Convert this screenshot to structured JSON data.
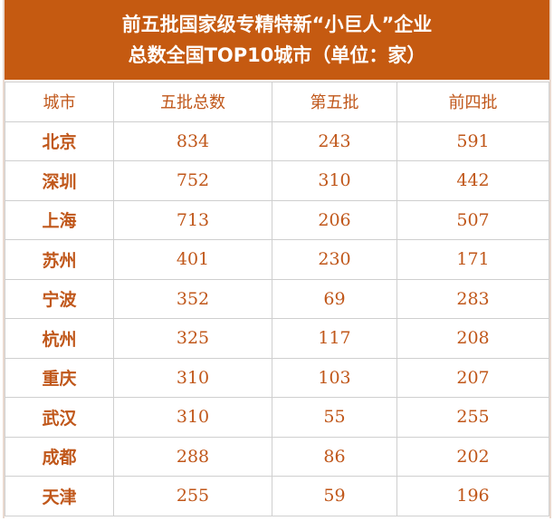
{
  "header": {
    "title_lines": [
      "前五批国家级专精特新“小巨人”企业",
      "总数全国TOP10城市（单位：家）"
    ]
  },
  "table": {
    "columns": [
      "城市",
      "五批总数",
      "第五批",
      "前四批"
    ],
    "rows": [
      [
        "北京",
        834,
        243,
        591
      ],
      [
        "深圳",
        752,
        310,
        442
      ],
      [
        "上海",
        713,
        206,
        507
      ],
      [
        "苏州",
        401,
        230,
        171
      ],
      [
        "宁波",
        352,
        69,
        283
      ],
      [
        "杭州",
        325,
        117,
        208
      ],
      [
        "重庆",
        310,
        103,
        207
      ],
      [
        "武汉",
        310,
        55,
        255
      ],
      [
        "成都",
        288,
        86,
        202
      ],
      [
        "天津",
        255,
        59,
        196
      ]
    ]
  }
}
